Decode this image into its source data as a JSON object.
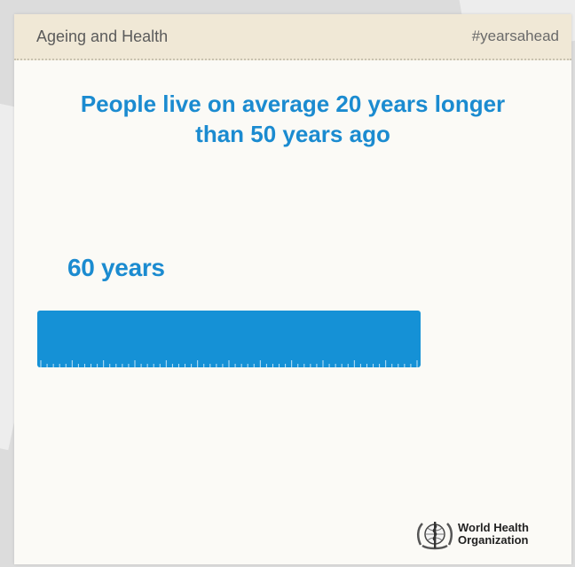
{
  "header": {
    "topic": "Ageing and Health",
    "hashtag": "#yearsahead"
  },
  "headline": {
    "line1": "People live on average 20 years longer",
    "line2": "than 50 years ago"
  },
  "bar": {
    "label": "60 years",
    "years": 60,
    "fill_fraction": 1.0
  },
  "logo": {
    "line1": "World Health",
    "line2": "Organization",
    "icon": "who-emblem-icon"
  },
  "colors": {
    "accent": "#1b8bd0",
    "bar": "#1591d6",
    "header_bg": "#f0e8d6",
    "card_bg": "#fbfaf6"
  }
}
